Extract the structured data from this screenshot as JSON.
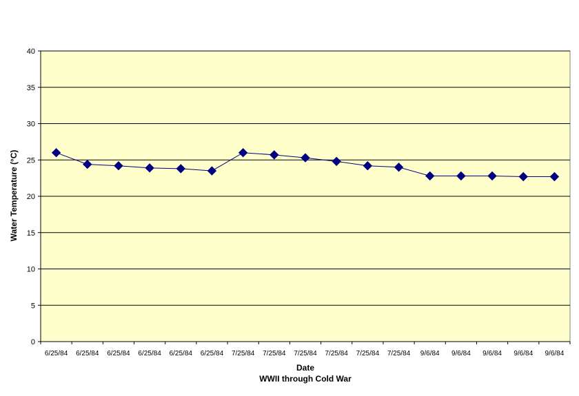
{
  "chart_data": {
    "type": "line",
    "title": "",
    "xlabel": "Date",
    "subtitle": "WWII through Cold War",
    "ylabel": "Water Temperature (°C)",
    "ylim": [
      0,
      40
    ],
    "yticks": [
      0,
      5,
      10,
      15,
      20,
      25,
      30,
      35,
      40
    ],
    "grid": true,
    "legend": "none",
    "colors": {
      "plot_background": "#ffffcc",
      "gridline": "#000000",
      "series": "#000080"
    },
    "categories": [
      "6/25/84",
      "6/25/84",
      "6/25/84",
      "6/25/84",
      "6/25/84",
      "6/25/84",
      "7/25/84",
      "7/25/84",
      "7/25/84",
      "7/25/84",
      "7/25/84",
      "7/25/84",
      "9/6/84",
      "9/6/84",
      "9/6/84",
      "9/6/84",
      "9/6/84"
    ],
    "series": [
      {
        "values": [
          26.0,
          24.4,
          24.2,
          23.9,
          23.8,
          23.5,
          26.0,
          25.7,
          25.3,
          24.8,
          24.2,
          24.0,
          22.8,
          22.8,
          22.8,
          22.7,
          22.7
        ]
      }
    ]
  }
}
